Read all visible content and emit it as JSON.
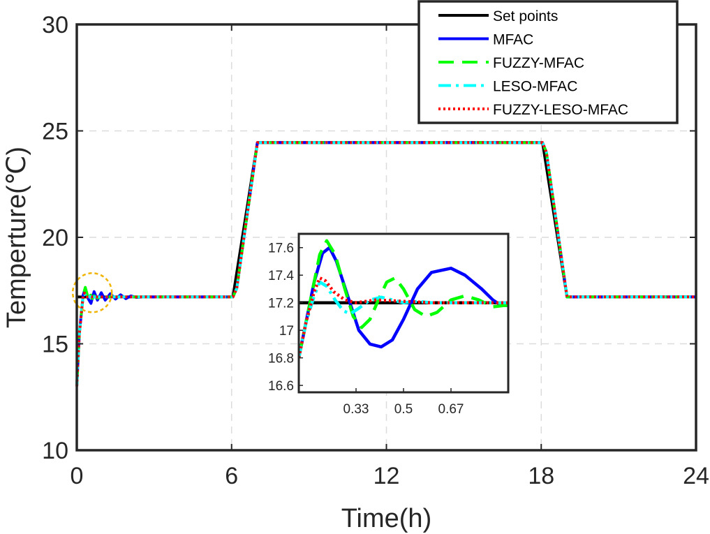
{
  "chart_data": [
    {
      "type": "line",
      "title": "",
      "xlabel": "Time(h)",
      "ylabel": "Temperture(℃)",
      "xlim": [
        0,
        24
      ],
      "ylim": [
        10,
        30
      ],
      "xticks": [
        0,
        6,
        12,
        18,
        24
      ],
      "yticks": [
        10,
        15,
        20,
        25,
        30
      ],
      "grid": true,
      "legend_position": "top-right",
      "series": [
        {
          "name": "Set points",
          "color": "#000000",
          "style": "solid",
          "points": [
            [
              0,
              17.2
            ],
            [
              6.05,
              17.2
            ],
            [
              7.0,
              24.45
            ],
            [
              18.05,
              24.45
            ],
            [
              19.0,
              17.2
            ],
            [
              24,
              17.2
            ]
          ]
        },
        {
          "name": "MFAC",
          "color": "#0000ff",
          "style": "solid",
          "points": [
            [
              0,
              13.0
            ],
            [
              0.1,
              15.5
            ],
            [
              0.25,
              17.3
            ],
            [
              0.33,
              17.6
            ],
            [
              0.45,
              17.1
            ],
            [
              0.55,
              16.9
            ],
            [
              0.67,
              17.45
            ],
            [
              0.8,
              17.05
            ],
            [
              0.95,
              17.4
            ],
            [
              1.1,
              17.05
            ],
            [
              1.3,
              17.35
            ],
            [
              1.5,
              17.1
            ],
            [
              1.7,
              17.3
            ],
            [
              1.9,
              17.12
            ],
            [
              2.1,
              17.25
            ],
            [
              2.3,
              17.18
            ],
            [
              2.6,
              17.2
            ],
            [
              6.05,
              17.2
            ],
            [
              6.2,
              17.6
            ],
            [
              7.0,
              24.45
            ],
            [
              18.05,
              24.45
            ],
            [
              18.2,
              24.0
            ],
            [
              19.0,
              17.2
            ],
            [
              24,
              17.2
            ]
          ]
        },
        {
          "name": "FUZZY-MFAC",
          "color": "#00ff00",
          "style": "dash",
          "points": [
            [
              0,
              13.0
            ],
            [
              0.1,
              15.5
            ],
            [
              0.25,
              17.3
            ],
            [
              0.33,
              17.65
            ],
            [
              0.45,
              17.1
            ],
            [
              0.5,
              17.38
            ],
            [
              0.6,
              17.12
            ],
            [
              0.67,
              17.25
            ],
            [
              0.8,
              17.15
            ],
            [
              1.0,
              17.22
            ],
            [
              1.5,
              17.2
            ],
            [
              6.05,
              17.2
            ],
            [
              6.2,
              17.6
            ],
            [
              7.0,
              24.45
            ],
            [
              18.05,
              24.45
            ],
            [
              18.2,
              24.0
            ],
            [
              19.0,
              17.2
            ],
            [
              24,
              17.2
            ]
          ]
        },
        {
          "name": "LESO-MFAC",
          "color": "#00ffff",
          "style": "dashdot",
          "points": [
            [
              0,
              13.0
            ],
            [
              0.1,
              15.5
            ],
            [
              0.25,
              17.3
            ],
            [
              0.3,
              17.35
            ],
            [
              0.4,
              17.12
            ],
            [
              0.5,
              17.22
            ],
            [
              0.6,
              17.2
            ],
            [
              6.05,
              17.2
            ],
            [
              6.2,
              17.6
            ],
            [
              7.0,
              24.45
            ],
            [
              18.05,
              24.45
            ],
            [
              18.2,
              24.0
            ],
            [
              19.0,
              17.2
            ],
            [
              24,
              17.2
            ]
          ]
        },
        {
          "name": "FUZZY-LESO-MFAC",
          "color": "#ff0000",
          "style": "dot",
          "points": [
            [
              0,
              13.0
            ],
            [
              0.1,
              15.5
            ],
            [
              0.25,
              17.3
            ],
            [
              0.3,
              17.38
            ],
            [
              0.4,
              17.2
            ],
            [
              0.5,
              17.22
            ],
            [
              0.6,
              17.2
            ],
            [
              6.05,
              17.2
            ],
            [
              6.2,
              17.6
            ],
            [
              7.0,
              24.45
            ],
            [
              18.05,
              24.45
            ],
            [
              18.2,
              24.0
            ],
            [
              19.0,
              17.2
            ],
            [
              24,
              17.2
            ]
          ]
        }
      ],
      "highlight_circle": {
        "x": 0.6,
        "y": 17.4,
        "color": "#f0b400"
      }
    },
    {
      "type": "line",
      "title": "",
      "xlabel": "",
      "ylabel": "",
      "xlim": [
        0.125,
        0.875
      ],
      "ylim": [
        16.55,
        17.7
      ],
      "xticks": [
        0.33,
        0.5,
        0.67
      ],
      "xtick_labels": [
        "0.33",
        "0.5",
        "0.67"
      ],
      "yticks": [
        16.6,
        16.8,
        17.0,
        17.2,
        17.4,
        17.6
      ],
      "ytick_labels": [
        "16.6",
        "16.8",
        "17",
        "17.2",
        "17.4",
        "17.6"
      ],
      "grid": false,
      "series": [
        {
          "color": "#000000",
          "style": "solid",
          "points": [
            [
              0.125,
              17.2
            ],
            [
              0.875,
              17.2
            ]
          ]
        },
        {
          "color": "#0000ff",
          "style": "solid",
          "points": [
            [
              0.125,
              16.8
            ],
            [
              0.15,
              17.05
            ],
            [
              0.18,
              17.35
            ],
            [
              0.21,
              17.56
            ],
            [
              0.235,
              17.6
            ],
            [
              0.26,
              17.5
            ],
            [
              0.3,
              17.25
            ],
            [
              0.34,
              17.0
            ],
            [
              0.38,
              16.9
            ],
            [
              0.42,
              16.88
            ],
            [
              0.46,
              16.93
            ],
            [
              0.5,
              17.08
            ],
            [
              0.55,
              17.3
            ],
            [
              0.6,
              17.42
            ],
            [
              0.67,
              17.45
            ],
            [
              0.72,
              17.4
            ],
            [
              0.78,
              17.3
            ],
            [
              0.82,
              17.22
            ],
            [
              0.85,
              17.18
            ],
            [
              0.875,
              17.18
            ]
          ]
        },
        {
          "color": "#00ff00",
          "style": "dash",
          "points": [
            [
              0.125,
              16.8
            ],
            [
              0.15,
              17.05
            ],
            [
              0.18,
              17.35
            ],
            [
              0.2,
              17.55
            ],
            [
              0.225,
              17.65
            ],
            [
              0.255,
              17.55
            ],
            [
              0.29,
              17.3
            ],
            [
              0.32,
              17.1
            ],
            [
              0.35,
              17.02
            ],
            [
              0.38,
              17.08
            ],
            [
              0.41,
              17.22
            ],
            [
              0.44,
              17.35
            ],
            [
              0.47,
              17.38
            ],
            [
              0.5,
              17.3
            ],
            [
              0.54,
              17.15
            ],
            [
              0.58,
              17.1
            ],
            [
              0.62,
              17.13
            ],
            [
              0.67,
              17.22
            ],
            [
              0.72,
              17.25
            ],
            [
              0.77,
              17.22
            ],
            [
              0.82,
              17.17
            ],
            [
              0.86,
              17.18
            ],
            [
              0.875,
              17.18
            ]
          ]
        },
        {
          "color": "#00ffff",
          "style": "dashdot",
          "points": [
            [
              0.125,
              16.8
            ],
            [
              0.15,
              17.05
            ],
            [
              0.18,
              17.25
            ],
            [
              0.2,
              17.35
            ],
            [
              0.225,
              17.32
            ],
            [
              0.255,
              17.22
            ],
            [
              0.285,
              17.14
            ],
            [
              0.31,
              17.12
            ],
            [
              0.34,
              17.16
            ],
            [
              0.38,
              17.22
            ],
            [
              0.42,
              17.24
            ],
            [
              0.46,
              17.22
            ],
            [
              0.5,
              17.2
            ],
            [
              0.55,
              17.21
            ],
            [
              0.6,
              17.2
            ],
            [
              0.875,
              17.2
            ]
          ]
        },
        {
          "color": "#ff0000",
          "style": "dot",
          "points": [
            [
              0.125,
              16.8
            ],
            [
              0.15,
              17.05
            ],
            [
              0.18,
              17.28
            ],
            [
              0.2,
              17.38
            ],
            [
              0.22,
              17.36
            ],
            [
              0.25,
              17.28
            ],
            [
              0.29,
              17.22
            ],
            [
              0.33,
              17.2
            ],
            [
              0.4,
              17.22
            ],
            [
              0.5,
              17.21
            ],
            [
              0.6,
              17.2
            ],
            [
              0.875,
              17.2
            ]
          ]
        }
      ]
    }
  ]
}
